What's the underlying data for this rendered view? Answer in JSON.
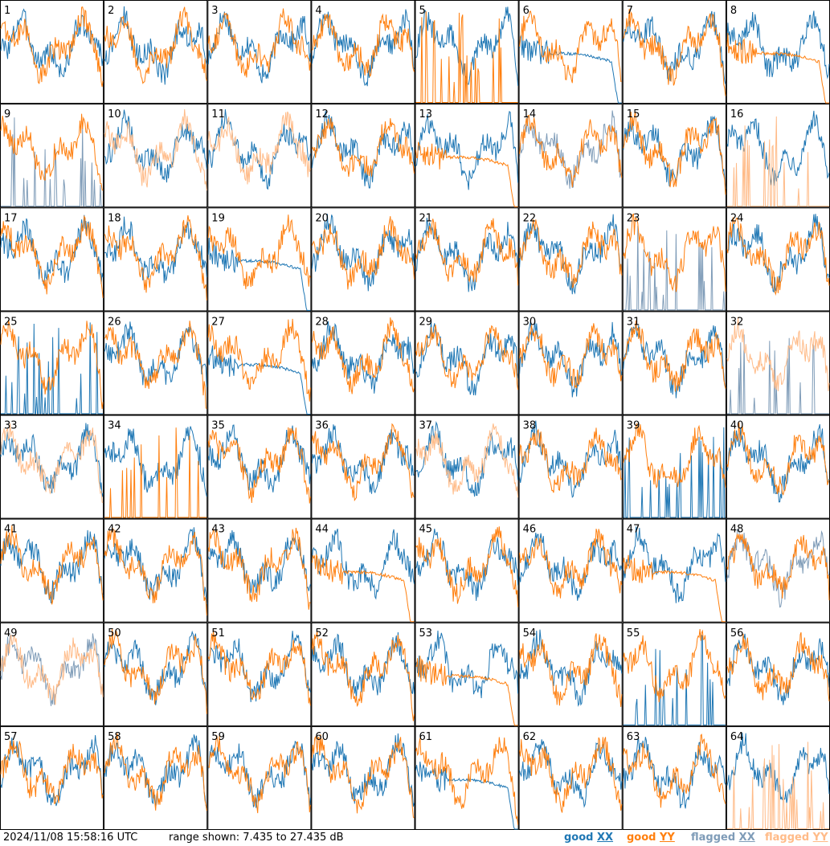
{
  "footer": {
    "timestamp": "2024/11/08 15:58:16 UTC",
    "range_text": "range shown: 7.435 to 27.435 dB",
    "legend": [
      {
        "prefix": "good ",
        "key": "XX",
        "color": "#1f77b4"
      },
      {
        "prefix": "good ",
        "key": "YY",
        "color": "#ff7f0e"
      },
      {
        "prefix": "flagged ",
        "key": "XX",
        "color": "#7f9cb8"
      },
      {
        "prefix": "flagged ",
        "key": "YY",
        "color": "#ffbb88"
      }
    ]
  },
  "chart_data": {
    "type": "line",
    "grid_rows": 8,
    "grid_cols": 8,
    "ylim": [
      7.435,
      27.435
    ],
    "colors": {
      "good_xx": "#1f77b4",
      "good_yy": "#ff7f0e",
      "flagged_xx": "#7f9cb8",
      "flagged_yy": "#ffbb88"
    },
    "panels": [
      {
        "label": "1",
        "xx": "good",
        "yy": "good",
        "xx_shape": "normal",
        "yy_shape": "normal"
      },
      {
        "label": "2",
        "xx": "good",
        "yy": "good",
        "xx_shape": "normal",
        "yy_shape": "normal"
      },
      {
        "label": "3",
        "xx": "good",
        "yy": "good",
        "xx_shape": "normal",
        "yy_shape": "normal"
      },
      {
        "label": "4",
        "xx": "good",
        "yy": "good",
        "xx_shape": "normal",
        "yy_shape": "normal"
      },
      {
        "label": "5",
        "xx": "good",
        "yy": "good",
        "xx_shape": "normal",
        "yy_shape": "spiky"
      },
      {
        "label": "6",
        "xx": "good",
        "yy": "good",
        "xx_shape": "decay",
        "yy_shape": "normal"
      },
      {
        "label": "7",
        "xx": "good",
        "yy": "good",
        "xx_shape": "normal",
        "yy_shape": "normal"
      },
      {
        "label": "8",
        "xx": "good",
        "yy": "good",
        "xx_shape": "normal",
        "yy_shape": "decay"
      },
      {
        "label": "9",
        "xx": "flagged",
        "yy": "good",
        "xx_shape": "spiky",
        "yy_shape": "normal"
      },
      {
        "label": "10",
        "xx": "good",
        "yy": "flagged",
        "xx_shape": "normal",
        "yy_shape": "normal"
      },
      {
        "label": "11",
        "xx": "good",
        "yy": "flagged",
        "xx_shape": "normal",
        "yy_shape": "normal"
      },
      {
        "label": "12",
        "xx": "good",
        "yy": "good",
        "xx_shape": "normal",
        "yy_shape": "normal"
      },
      {
        "label": "13",
        "xx": "good",
        "yy": "good",
        "xx_shape": "normal",
        "yy_shape": "decay"
      },
      {
        "label": "14",
        "xx": "flagged",
        "yy": "good",
        "xx_shape": "normal",
        "yy_shape": "normal"
      },
      {
        "label": "15",
        "xx": "good",
        "yy": "good",
        "xx_shape": "normal",
        "yy_shape": "normal"
      },
      {
        "label": "16",
        "xx": "good",
        "yy": "flagged",
        "xx_shape": "normal",
        "yy_shape": "spiky"
      },
      {
        "label": "17",
        "xx": "good",
        "yy": "good",
        "xx_shape": "normal",
        "yy_shape": "normal"
      },
      {
        "label": "18",
        "xx": "good",
        "yy": "good",
        "xx_shape": "normal",
        "yy_shape": "normal"
      },
      {
        "label": "19",
        "xx": "good",
        "yy": "good",
        "xx_shape": "decay",
        "yy_shape": "normal"
      },
      {
        "label": "20",
        "xx": "good",
        "yy": "good",
        "xx_shape": "normal",
        "yy_shape": "normal"
      },
      {
        "label": "21",
        "xx": "good",
        "yy": "good",
        "xx_shape": "normal",
        "yy_shape": "normal"
      },
      {
        "label": "22",
        "xx": "good",
        "yy": "good",
        "xx_shape": "normal",
        "yy_shape": "normal"
      },
      {
        "label": "23",
        "xx": "flagged",
        "yy": "good",
        "xx_shape": "spiky",
        "yy_shape": "normal"
      },
      {
        "label": "24",
        "xx": "good",
        "yy": "good",
        "xx_shape": "normal",
        "yy_shape": "normal"
      },
      {
        "label": "25",
        "xx": "good",
        "yy": "good",
        "xx_shape": "spiky",
        "yy_shape": "normal"
      },
      {
        "label": "26",
        "xx": "good",
        "yy": "good",
        "xx_shape": "normal",
        "yy_shape": "normal"
      },
      {
        "label": "27",
        "xx": "good",
        "yy": "good",
        "xx_shape": "decay",
        "yy_shape": "normal"
      },
      {
        "label": "28",
        "xx": "good",
        "yy": "good",
        "xx_shape": "normal",
        "yy_shape": "normal"
      },
      {
        "label": "29",
        "xx": "good",
        "yy": "good",
        "xx_shape": "normal",
        "yy_shape": "normal"
      },
      {
        "label": "30",
        "xx": "good",
        "yy": "good",
        "xx_shape": "normal",
        "yy_shape": "normal"
      },
      {
        "label": "31",
        "xx": "good",
        "yy": "good",
        "xx_shape": "normal",
        "yy_shape": "normal"
      },
      {
        "label": "32",
        "xx": "flagged",
        "yy": "flagged",
        "xx_shape": "spiky",
        "yy_shape": "normal"
      },
      {
        "label": "33",
        "xx": "good",
        "yy": "flagged",
        "xx_shape": "normal",
        "yy_shape": "normal"
      },
      {
        "label": "34",
        "xx": "good",
        "yy": "good",
        "xx_shape": "normal",
        "yy_shape": "spiky"
      },
      {
        "label": "35",
        "xx": "good",
        "yy": "good",
        "xx_shape": "normal",
        "yy_shape": "normal"
      },
      {
        "label": "36",
        "xx": "good",
        "yy": "good",
        "xx_shape": "normal",
        "yy_shape": "normal"
      },
      {
        "label": "37",
        "xx": "good",
        "yy": "flagged",
        "xx_shape": "normal",
        "yy_shape": "normal"
      },
      {
        "label": "38",
        "xx": "good",
        "yy": "good",
        "xx_shape": "normal",
        "yy_shape": "normal"
      },
      {
        "label": "39",
        "xx": "good",
        "yy": "good",
        "xx_shape": "spiky",
        "yy_shape": "normal"
      },
      {
        "label": "40",
        "xx": "good",
        "yy": "good",
        "xx_shape": "normal",
        "yy_shape": "normal"
      },
      {
        "label": "41",
        "xx": "good",
        "yy": "good",
        "xx_shape": "normal",
        "yy_shape": "normal"
      },
      {
        "label": "42",
        "xx": "good",
        "yy": "good",
        "xx_shape": "normal",
        "yy_shape": "normal"
      },
      {
        "label": "43",
        "xx": "good",
        "yy": "good",
        "xx_shape": "normal",
        "yy_shape": "normal"
      },
      {
        "label": "44",
        "xx": "good",
        "yy": "good",
        "xx_shape": "normal",
        "yy_shape": "decay"
      },
      {
        "label": "45",
        "xx": "good",
        "yy": "good",
        "xx_shape": "normal",
        "yy_shape": "normal"
      },
      {
        "label": "46",
        "xx": "good",
        "yy": "good",
        "xx_shape": "normal",
        "yy_shape": "normal"
      },
      {
        "label": "47",
        "xx": "good",
        "yy": "good",
        "xx_shape": "normal",
        "yy_shape": "decay"
      },
      {
        "label": "48",
        "xx": "flagged",
        "yy": "good",
        "xx_shape": "normal",
        "yy_shape": "normal"
      },
      {
        "label": "49",
        "xx": "flagged",
        "yy": "flagged",
        "xx_shape": "normal",
        "yy_shape": "normal"
      },
      {
        "label": "50",
        "xx": "good",
        "yy": "good",
        "xx_shape": "normal",
        "yy_shape": "normal"
      },
      {
        "label": "51",
        "xx": "good",
        "yy": "good",
        "xx_shape": "normal",
        "yy_shape": "normal"
      },
      {
        "label": "52",
        "xx": "good",
        "yy": "good",
        "xx_shape": "normal",
        "yy_shape": "normal"
      },
      {
        "label": "53",
        "xx": "good",
        "yy": "good",
        "xx_shape": "normal",
        "yy_shape": "decay"
      },
      {
        "label": "54",
        "xx": "good",
        "yy": "good",
        "xx_shape": "normal",
        "yy_shape": "normal"
      },
      {
        "label": "55",
        "xx": "good",
        "yy": "good",
        "xx_shape": "spiky",
        "yy_shape": "normal"
      },
      {
        "label": "56",
        "xx": "good",
        "yy": "good",
        "xx_shape": "normal",
        "yy_shape": "normal"
      },
      {
        "label": "57",
        "xx": "good",
        "yy": "good",
        "xx_shape": "normal",
        "yy_shape": "normal"
      },
      {
        "label": "58",
        "xx": "good",
        "yy": "good",
        "xx_shape": "normal",
        "yy_shape": "normal"
      },
      {
        "label": "59",
        "xx": "good",
        "yy": "good",
        "xx_shape": "normal",
        "yy_shape": "normal"
      },
      {
        "label": "60",
        "xx": "good",
        "yy": "good",
        "xx_shape": "normal",
        "yy_shape": "normal"
      },
      {
        "label": "61",
        "xx": "good",
        "yy": "good",
        "xx_shape": "decay",
        "yy_shape": "normal"
      },
      {
        "label": "62",
        "xx": "good",
        "yy": "good",
        "xx_shape": "normal",
        "yy_shape": "normal"
      },
      {
        "label": "63",
        "xx": "good",
        "yy": "good",
        "xx_shape": "normal",
        "yy_shape": "normal"
      },
      {
        "label": "64",
        "xx": "good",
        "yy": "flagged",
        "xx_shape": "normal",
        "yy_shape": "spiky"
      }
    ]
  }
}
